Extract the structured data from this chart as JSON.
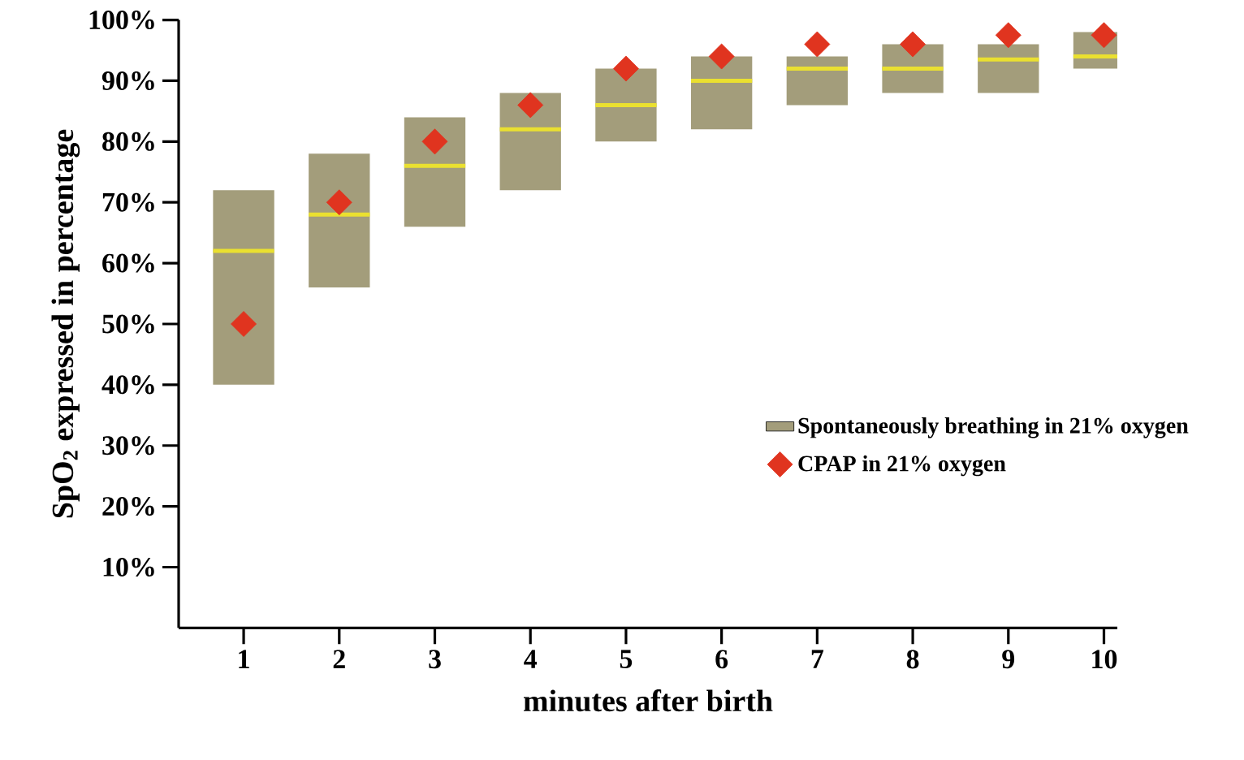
{
  "chart_data": {
    "type": "box",
    "xlabel": "minutes after birth",
    "ylabel": "SpO$_{2}$ expressed in percentage",
    "categories": [
      "1",
      "2",
      "3",
      "4",
      "5",
      "6",
      "7",
      "8",
      "9",
      "10"
    ],
    "ylim": [
      0,
      100
    ],
    "yticks": [
      {
        "value": 10,
        "label": "10%"
      },
      {
        "value": 20,
        "label": "20%"
      },
      {
        "value": 30,
        "label": "30%"
      },
      {
        "value": 40,
        "label": "40%"
      },
      {
        "value": 50,
        "label": "50%"
      },
      {
        "value": 60,
        "label": "60%"
      },
      {
        "value": 70,
        "label": "70%"
      },
      {
        "value": 80,
        "label": "80%"
      },
      {
        "value": 90,
        "label": "90%"
      },
      {
        "value": 100,
        "label": "100%"
      }
    ],
    "series": [
      {
        "name": "Spontaneously breathing in 21% oxygen",
        "color": "#a39d7b",
        "boxes": [
          {
            "low": 40,
            "q1": 40,
            "median": 62,
            "q3": 72,
            "high": 72
          },
          {
            "low": 56,
            "q1": 56,
            "median": 68,
            "q3": 78,
            "high": 78
          },
          {
            "low": 66,
            "q1": 66,
            "median": 76,
            "q3": 84,
            "high": 84
          },
          {
            "low": 72,
            "q1": 72,
            "median": 82,
            "q3": 88,
            "high": 88
          },
          {
            "low": 80,
            "q1": 80,
            "median": 86,
            "q3": 92,
            "high": 92
          },
          {
            "low": 82,
            "q1": 82,
            "median": 90,
            "q3": 94,
            "high": 94
          },
          {
            "low": 86,
            "q1": 86,
            "median": 92,
            "q3": 94,
            "high": 94
          },
          {
            "low": 88,
            "q1": 88,
            "median": 92,
            "q3": 96,
            "high": 96
          },
          {
            "low": 88,
            "q1": 88,
            "median": 93.5,
            "q3": 96,
            "high": 96
          },
          {
            "low": 92,
            "q1": 92,
            "median": 94,
            "q3": 98,
            "high": 98
          }
        ]
      },
      {
        "name": "CPAP in 21% oxygen",
        "type": "scatter",
        "color": "#e0341f",
        "marker": "diamond",
        "x": [
          "1",
          "2",
          "3",
          "4",
          "5",
          "6",
          "7",
          "8",
          "9",
          "10"
        ],
        "values": [
          50,
          70,
          80,
          86,
          92,
          94,
          96,
          96,
          97.5,
          97.5
        ]
      }
    ],
    "grid": false,
    "legend": "right"
  }
}
